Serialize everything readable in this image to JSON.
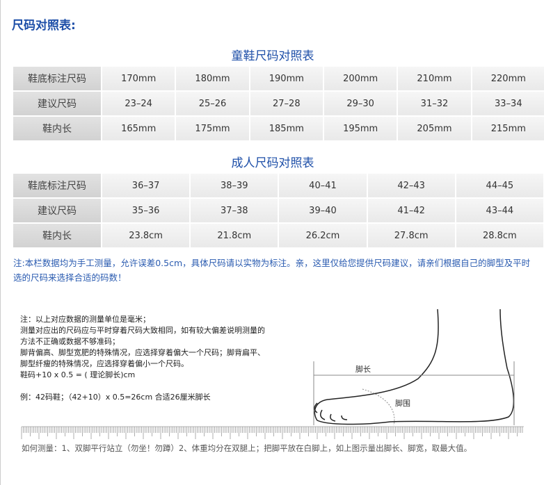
{
  "title": "尺码对照表:",
  "kids": {
    "title": "童鞋尺码对照表",
    "rows": [
      {
        "label": "鞋底标注尺码",
        "cells": [
          "170mm",
          "180mm",
          "190mm",
          "200mm",
          "210mm",
          "220mm"
        ]
      },
      {
        "label": "建议尺码",
        "cells": [
          "23–24",
          "25–26",
          "27–28",
          "29–30",
          "31–32",
          "33–34"
        ]
      },
      {
        "label": "鞋内长",
        "cells": [
          "165mm",
          "175mm",
          "185mm",
          "195mm",
          "205mm",
          "215mm"
        ]
      }
    ]
  },
  "adult": {
    "title": "成人尺码对照表",
    "rows": [
      {
        "label": "鞋底标注尺码",
        "cells": [
          "36–37",
          "38–39",
          "40–41",
          "42–43",
          "44–45",
          ""
        ]
      },
      {
        "label": "建议尺码",
        "cells": [
          "35–36",
          "37–38",
          "39–40",
          "41–42",
          "43–44",
          ""
        ]
      },
      {
        "label": "鞋内长",
        "cells": [
          "23.8cm",
          "21.8cm",
          "26.2cm",
          "27.8cm",
          "28.8cm",
          ""
        ]
      }
    ]
  },
  "note": "注:本栏数据均为手工测量，允许误差0.5cm，具体尺码请以实物为标注。亲，这里仅给您提供尺码建议，请亲们根据自己的脚型及平时选的尺码来选择合适的码数！",
  "notes2": [
    "注：以上对应数据的测量单位是毫米；",
    "测量对应出的尺码应与平时穿着尺码大致相同，如有较大偏差说明测量的",
    "方法不正确或数据不够准码；",
    "脚背偏高、脚型宽肥的特殊情况，应选择穿着偏大一个尺码；脚背扁平、",
    "脚型纤瘦的特殊情况，应选择穿着偏小一个尺码。",
    "鞋码+10 x 0.5 = ( 理论脚长)cm",
    "",
    "例：42码鞋；（42+10）x 0.5=26cm  合适26厘米脚长"
  ],
  "foot": {
    "length_label": "脚长",
    "girth_label": "脚围"
  },
  "how": "如何测量：1、双脚平行站立（勿坐！勿蹲）2、体重均分在双腿上；把脚平放在白脚上，如上图示量出脚长、脚宽，取最大值。"
}
